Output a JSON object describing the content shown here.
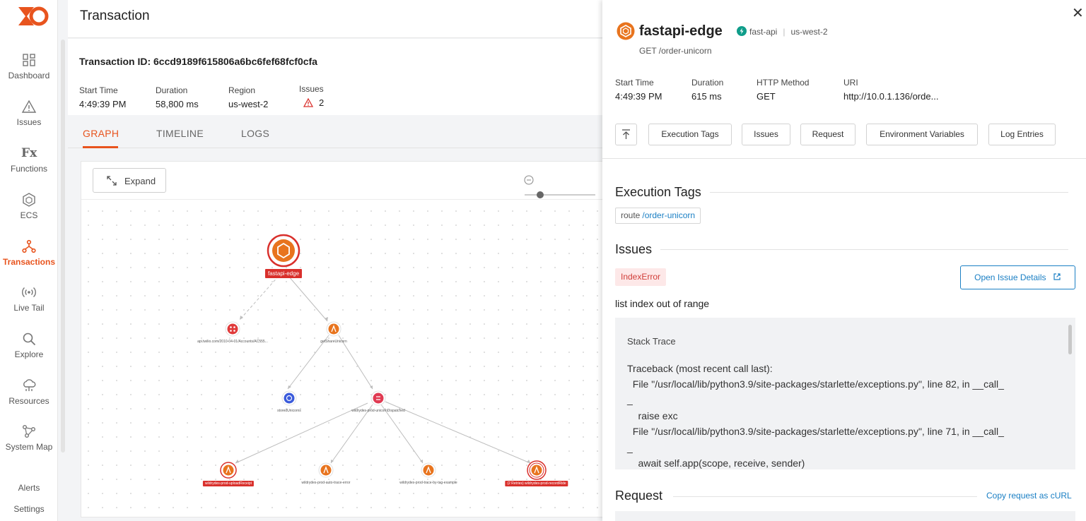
{
  "sidebar": {
    "items": [
      {
        "label": "Dashboard",
        "icon": "dashboard-icon"
      },
      {
        "label": "Issues",
        "icon": "warning-icon"
      },
      {
        "label": "Functions",
        "icon": "fx-icon",
        "glyph": "Fx"
      },
      {
        "label": "ECS",
        "icon": "ecs-icon"
      },
      {
        "label": "Transactions",
        "icon": "transactions-icon",
        "active": true
      },
      {
        "label": "Live Tail",
        "icon": "live-tail-icon"
      },
      {
        "label": "Explore",
        "icon": "search-icon"
      },
      {
        "label": "Resources",
        "icon": "resources-icon"
      },
      {
        "label": "System Map",
        "icon": "system-map-icon"
      },
      {
        "label": "Alerts",
        "icon": ""
      },
      {
        "label": "Settings",
        "icon": ""
      }
    ]
  },
  "header": {
    "title": "Transaction"
  },
  "transaction": {
    "id_label": "Transaction ID: 6ccd9189f615806a6bc6fef68fcf0cfa",
    "start_time_label": "Start Time",
    "start_time": "4:49:39 PM",
    "duration_label": "Duration",
    "duration": "58,800 ms",
    "region_label": "Region",
    "region": "us-west-2",
    "issues_label": "Issues",
    "issues": "2"
  },
  "tabs": [
    {
      "label": "GRAPH",
      "active": true
    },
    {
      "label": "TIMELINE"
    },
    {
      "label": "LOGS"
    }
  ],
  "graph": {
    "expand_label": "Expand",
    "nodes": {
      "root": "fastapi-edge",
      "twilio": "api.twilio.com/2010-04-01/Accounts/AC555...",
      "get_unicorn": "getShareUnicorn",
      "stored": "storedUnicorns",
      "dispatched": "wildrydes-prod-unicornDispatched",
      "upload": "wildrydes-prod-uploadReceipt",
      "auto_trace": "wildrydes-prod-auto-trace-error",
      "trace_tag": "wildrydes-prod-trace-by-tag-example",
      "record_ride": "(2 Retries) wildrydes-prod-recordRide"
    }
  },
  "drawer": {
    "function_name": "fastapi-edge",
    "runtime": "fast-api",
    "region": "us-west-2",
    "route": "GET /order-unicorn",
    "meta": {
      "start_time_label": "Start Time",
      "start_time": "4:49:39 PM",
      "duration_label": "Duration",
      "duration": "615 ms",
      "method_label": "HTTP Method",
      "method": "GET",
      "uri_label": "URI",
      "uri": "http://10.0.1.136/orde..."
    },
    "buttons": [
      "Execution Tags",
      "Issues",
      "Request",
      "Environment Variables",
      "Log Entries"
    ],
    "execution_tags_title": "Execution Tags",
    "tag_key": "route",
    "tag_value": "/order-unicorn",
    "issues_title": "Issues",
    "error_type": "IndexError",
    "open_issue_label": "Open Issue Details",
    "error_message": "list index out of range",
    "stack_title": "Stack Trace",
    "stack_lines": [
      "Traceback (most recent call last):",
      "  File \"/usr/local/lib/python3.9/site-packages/starlette/exceptions.py\", line 82, in __call_",
      "_",
      "    raise exc",
      "  File \"/usr/local/lib/python3.9/site-packages/starlette/exceptions.py\", line 71, in __call_",
      "_",
      "    await self.app(scope, receive, sender)"
    ],
    "request_title": "Request",
    "copy_curl_label": "Copy request as cURL"
  },
  "colors": {
    "accent": "#e8541e",
    "error": "#d9302c",
    "link": "#1a7fc4",
    "node_blue": "#3b5bdb"
  }
}
